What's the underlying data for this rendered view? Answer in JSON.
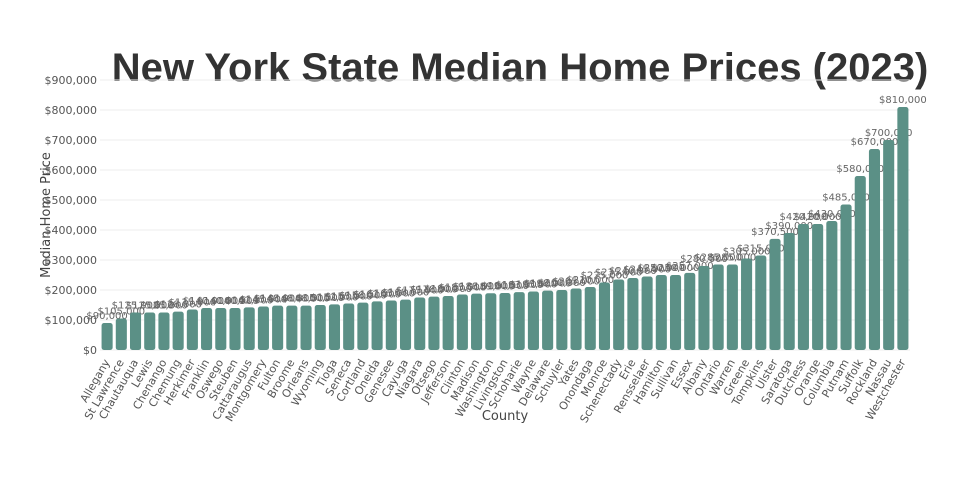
{
  "chart_data": {
    "type": "bar",
    "title": "New York State Median Home Prices (2023)",
    "x_label": "County",
    "y_label": "Median Home Price",
    "color": "#5b9086",
    "grid": true,
    "categories": [
      "Allegany",
      "St Lawrence",
      "Chautauqua",
      "Lewis",
      "Chenango",
      "Chemung",
      "Herkimer",
      "Franklin",
      "Oswego",
      "Steuben",
      "Cattaraugus",
      "Montgomery",
      "Fulton",
      "Broome",
      "Orleans",
      "Wyoming",
      "Tioga",
      "Seneca",
      "Cortland",
      "Oneida",
      "Genesee",
      "Cayuga",
      "Niagara",
      "Otsego",
      "Jefferson",
      "Clinton",
      "Madison",
      "Washington",
      "Livingston",
      "Schoharie",
      "Wayne",
      "Delaware",
      "Schuyler",
      "Yates",
      "Onondaga",
      "Monroe",
      "Schenectady",
      "Erie",
      "Rensselaer",
      "Hamilton",
      "Sullivan",
      "Essex",
      "Albany",
      "Ontario",
      "Warren",
      "Greene",
      "Tompkins",
      "Ulster",
      "Saratoga",
      "Dutchess",
      "Orange",
      "Columbia",
      "Putnam",
      "Suffolk",
      "Rockland",
      "Nassau",
      "Westchester"
    ],
    "values": [
      90000,
      105000,
      125000,
      125000,
      125000,
      128000,
      135000,
      140000,
      140000,
      140000,
      142000,
      145000,
      148000,
      148000,
      148000,
      150000,
      152000,
      155000,
      158000,
      162000,
      165000,
      168000,
      175000,
      178000,
      180000,
      185000,
      188000,
      189000,
      190000,
      193000,
      195000,
      198000,
      200000,
      205000,
      210000,
      225000,
      235000,
      240000,
      245000,
      250000,
      250000,
      257000,
      280000,
      285000,
      285000,
      305000,
      315000,
      370500,
      390000,
      420000,
      420000,
      430000,
      485000,
      580000,
      670000,
      700000,
      810000
    ],
    "value_labels": [
      "$90,000",
      "$105,000",
      "$125,000",
      "$125,000",
      "$125,000",
      "$128,000",
      "$135,000",
      "$140,000",
      "$140,000",
      "$140,000",
      "$142,000",
      "$145,000",
      "$148,000",
      "$148,000",
      "$148,000",
      "$150,000",
      "$152,000",
      "$155,000",
      "$158,000",
      "$162,000",
      "$165,000",
      "$168,000",
      "$175,000",
      "$178,000",
      "$180,000",
      "$185,000",
      "$188,000",
      "$189,000",
      "$190,000",
      "$193,000",
      "$195,000",
      "$198,000",
      "$200,000",
      "$205,000",
      "$210,000",
      "$225,000",
      "$235,000",
      "$240,000",
      "$245,000",
      "$250,000",
      "$250,000",
      "$257,000",
      "$280,000",
      "$285,000",
      "$285,000",
      "$305,000",
      "$315,000",
      "$370,500",
      "$390,000",
      "$420,000",
      "$420,000",
      "$430,000",
      "$485,000",
      "$580,000",
      "$670,000",
      "$700,000",
      "$810,000"
    ],
    "ylim": [
      0,
      900000
    ],
    "yticks": [
      {
        "value": 0,
        "label": "$0"
      },
      {
        "value": 100000,
        "label": "$100,000"
      },
      {
        "value": 200000,
        "label": "$200,000"
      },
      {
        "value": 300000,
        "label": "$300,000"
      },
      {
        "value": 400000,
        "label": "$400,000"
      },
      {
        "value": 500000,
        "label": "$500,000"
      },
      {
        "value": 600000,
        "label": "$600,000"
      },
      {
        "value": 700000,
        "label": "$700,000"
      },
      {
        "value": 800000,
        "label": "$800,000"
      },
      {
        "value": 900000,
        "label": "$900,000"
      }
    ]
  }
}
